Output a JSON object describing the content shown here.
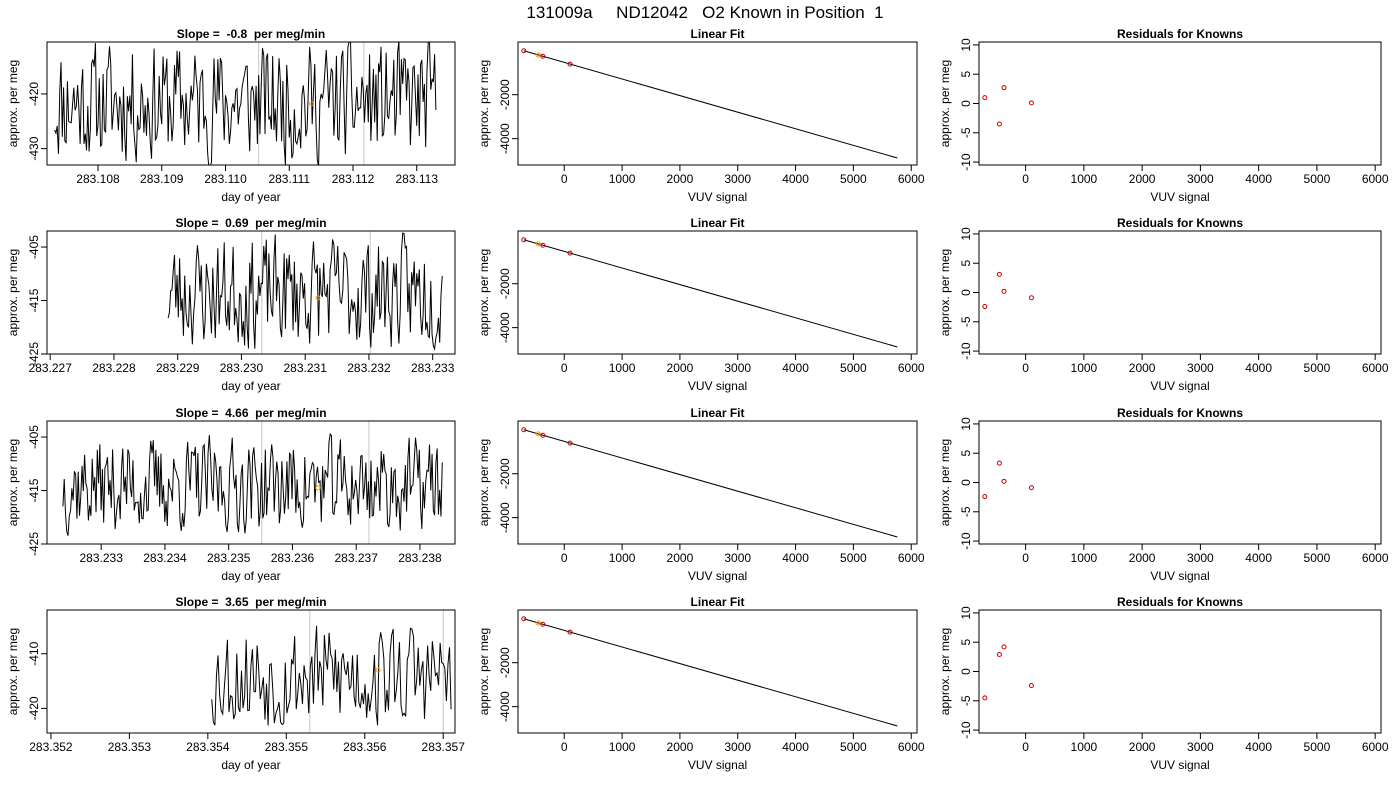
{
  "page_title": "131009a     ND12042   O2 Known in Position  1",
  "colors": {
    "line": "#000000",
    "known_marker": "#ff9900",
    "residual_marker": "#cc0000",
    "vline": "#c8c8c8"
  },
  "chart_data": [
    {
      "type": "line",
      "panel": "time",
      "title": "Slope =  -0.8  per meg/min",
      "xlabel": "day of year",
      "ylabel": "approx. per meg",
      "xlim": [
        283.1072,
        283.1136
      ],
      "ylim": [
        -433.0,
        -410.5
      ],
      "xticks": [
        283.108,
        283.109,
        283.11,
        283.111,
        283.112,
        283.113
      ],
      "xtick_labels": [
        "283.108",
        "283.109",
        "283.110",
        "283.111",
        "283.112",
        "283.113"
      ],
      "yticks": [
        -420,
        -430
      ],
      "ytick_labels": [
        "-420",
        "-430"
      ],
      "vlines": [
        283.11052,
        283.11217
      ],
      "x_start": 283.10732,
      "x_end": 283.1133,
      "seed": 11,
      "mean": -421.5,
      "amp": 10.5,
      "marker": {
        "x": 283.11135,
        "y": -421.8
      }
    },
    {
      "type": "scatter",
      "panel": "fit",
      "title": "Linear Fit",
      "xlabel": "VUV signal",
      "ylabel": "approx. per meg",
      "xlim": [
        -800,
        6100
      ],
      "ylim": [
        -5200,
        400
      ],
      "xticks": [
        0,
        1000,
        2000,
        3000,
        4000,
        5000,
        6000
      ],
      "xtick_labels": [
        "0",
        "1000",
        "2000",
        "3000",
        "4000",
        "5000",
        "6000"
      ],
      "yticks": [
        -2000,
        -4000
      ],
      "ytick_labels": [
        "-2000",
        "-4000"
      ],
      "fit_line": {
        "x": [
          -700,
          5760
        ],
        "y": [
          0,
          -4880
        ]
      },
      "points": [
        {
          "x": -700,
          "y": 0,
          "c": "residual"
        },
        {
          "x": -450,
          "y": -189,
          "c": "known"
        },
        {
          "x": -370,
          "y": -249,
          "c": "residual"
        },
        {
          "x": 100,
          "y": -607,
          "c": "residual"
        }
      ]
    },
    {
      "type": "scatter",
      "panel": "resid",
      "title": "Residuals for Knowns",
      "xlabel": "VUV signal",
      "ylabel": "approx. per meg",
      "xlim": [
        -800,
        6100
      ],
      "ylim": [
        -10.5,
        10.5
      ],
      "xticks": [
        0,
        1000,
        2000,
        3000,
        4000,
        5000,
        6000
      ],
      "xtick_labels": [
        "0",
        "1000",
        "2000",
        "3000",
        "4000",
        "5000",
        "6000"
      ],
      "yticks": [
        10,
        5,
        0,
        -5,
        -10
      ],
      "ytick_labels": [
        "10",
        "5",
        "0",
        "-5",
        "-10"
      ],
      "points": [
        {
          "x": -700,
          "y": 1.0
        },
        {
          "x": -450,
          "y": -3.5
        },
        {
          "x": -370,
          "y": 2.7
        },
        {
          "x": 100,
          "y": 0.1
        }
      ]
    },
    {
      "type": "line",
      "panel": "time",
      "title": "Slope =  0.69  per meg/min",
      "xlabel": "day of year",
      "ylabel": "approx. per meg",
      "xlim": [
        283.22695,
        283.23335
      ],
      "ylim": [
        -425.0,
        -402.0
      ],
      "xticks": [
        283.227,
        283.228,
        283.229,
        283.23,
        283.231,
        283.232,
        283.233
      ],
      "xtick_labels": [
        "283.227",
        "283.228",
        "283.229",
        "283.230",
        "283.231",
        "283.232",
        "283.233"
      ],
      "yticks": [
        -405,
        -415,
        -425
      ],
      "ytick_labels": [
        "-405",
        "-415",
        "-425"
      ],
      "vlines": [
        283.23032,
        283.23202
      ],
      "x_start": 283.22885,
      "x_end": 283.23315,
      "seed": 23,
      "mean": -413.5,
      "amp": 10.0,
      "marker": {
        "x": 283.2312,
        "y": -414.5
      }
    },
    {
      "type": "scatter",
      "panel": "fit",
      "title": "Linear Fit",
      "xlabel": "VUV signal",
      "ylabel": "approx. per meg",
      "xlim": [
        -800,
        6100
      ],
      "ylim": [
        -5200,
        400
      ],
      "xticks": [
        0,
        1000,
        2000,
        3000,
        4000,
        5000,
        6000
      ],
      "xtick_labels": [
        "0",
        "1000",
        "2000",
        "3000",
        "4000",
        "5000",
        "6000"
      ],
      "yticks": [
        -2000,
        -4000
      ],
      "ytick_labels": [
        "-2000",
        "-4000"
      ],
      "fit_line": {
        "x": [
          -700,
          5760
        ],
        "y": [
          0,
          -4880
        ]
      },
      "points": [
        {
          "x": -700,
          "y": 0,
          "c": "residual"
        },
        {
          "x": -450,
          "y": -189,
          "c": "known"
        },
        {
          "x": -370,
          "y": -249,
          "c": "residual"
        },
        {
          "x": 100,
          "y": -607,
          "c": "residual"
        }
      ]
    },
    {
      "type": "scatter",
      "panel": "resid",
      "title": "Residuals for Knowns",
      "xlabel": "VUV signal",
      "ylabel": "approx. per meg",
      "xlim": [
        -800,
        6100
      ],
      "ylim": [
        -10.5,
        10.5
      ],
      "xticks": [
        0,
        1000,
        2000,
        3000,
        4000,
        5000,
        6000
      ],
      "xtick_labels": [
        "0",
        "1000",
        "2000",
        "3000",
        "4000",
        "5000",
        "6000"
      ],
      "yticks": [
        10,
        5,
        0,
        -5,
        -10
      ],
      "ytick_labels": [
        "10",
        "5",
        "0",
        "-5",
        "-10"
      ],
      "points": [
        {
          "x": -700,
          "y": -2.4
        },
        {
          "x": -450,
          "y": 3.1
        },
        {
          "x": -370,
          "y": 0.2
        },
        {
          "x": 100,
          "y": -0.9
        }
      ]
    },
    {
      "type": "line",
      "panel": "time",
      "title": "Slope =  4.66  per meg/min",
      "xlabel": "day of year",
      "ylabel": "approx. per meg",
      "xlim": [
        283.23215,
        283.23855
      ],
      "ylim": [
        -425.0,
        -402.0
      ],
      "xticks": [
        283.233,
        283.234,
        283.235,
        283.236,
        283.237,
        283.238
      ],
      "xtick_labels": [
        "283.233",
        "283.234",
        "283.235",
        "283.236",
        "283.237",
        "283.238"
      ],
      "yticks": [
        -405,
        -415,
        -425
      ],
      "ytick_labels": [
        "-405",
        "-415",
        "-425"
      ],
      "vlines": [
        283.23552,
        283.2372
      ],
      "x_start": 283.2324,
      "x_end": 283.23835,
      "seed": 37,
      "mean": -414.0,
      "amp": 8.5,
      "marker": {
        "x": 283.2364,
        "y": -414.5
      }
    },
    {
      "type": "scatter",
      "panel": "fit",
      "title": "Linear Fit",
      "xlabel": "VUV signal",
      "ylabel": "approx. per meg",
      "xlim": [
        -800,
        6100
      ],
      "ylim": [
        -5200,
        400
      ],
      "xticks": [
        0,
        1000,
        2000,
        3000,
        4000,
        5000,
        6000
      ],
      "xtick_labels": [
        "0",
        "1000",
        "2000",
        "3000",
        "4000",
        "5000",
        "6000"
      ],
      "yticks": [
        -2000,
        -4000
      ],
      "ytick_labels": [
        "-2000",
        "-4000"
      ],
      "fit_line": {
        "x": [
          -700,
          5760
        ],
        "y": [
          0,
          -4880
        ]
      },
      "points": [
        {
          "x": -700,
          "y": 0,
          "c": "residual"
        },
        {
          "x": -450,
          "y": -189,
          "c": "known"
        },
        {
          "x": -370,
          "y": -249,
          "c": "residual"
        },
        {
          "x": 100,
          "y": -607,
          "c": "residual"
        }
      ]
    },
    {
      "type": "scatter",
      "panel": "resid",
      "title": "Residuals for Knowns",
      "xlabel": "VUV signal",
      "ylabel": "approx. per meg",
      "xlim": [
        -800,
        6100
      ],
      "ylim": [
        -10.5,
        10.5
      ],
      "xticks": [
        0,
        1000,
        2000,
        3000,
        4000,
        5000,
        6000
      ],
      "xtick_labels": [
        "0",
        "1000",
        "2000",
        "3000",
        "4000",
        "5000",
        "6000"
      ],
      "yticks": [
        10,
        5,
        0,
        -5,
        -10
      ],
      "ytick_labels": [
        "10",
        "5",
        "0",
        "-5",
        "-10"
      ],
      "points": [
        {
          "x": -700,
          "y": -2.4
        },
        {
          "x": -450,
          "y": 3.3
        },
        {
          "x": -370,
          "y": 0.2
        },
        {
          "x": 100,
          "y": -0.9
        }
      ]
    },
    {
      "type": "line",
      "panel": "time",
      "title": "Slope =  3.65  per meg/min",
      "xlabel": "day of year",
      "ylabel": "approx. per meg",
      "xlim": [
        283.35195,
        283.35715
      ],
      "ylim": [
        -424.5,
        -402.0
      ],
      "xticks": [
        283.352,
        283.353,
        283.354,
        283.355,
        283.356,
        283.357
      ],
      "xtick_labels": [
        "283.352",
        "283.353",
        "283.354",
        "283.355",
        "283.356",
        "283.357"
      ],
      "yticks": [
        -410,
        -420
      ],
      "ytick_labels": [
        "-410",
        "-420"
      ],
      "vlines": [
        283.3553,
        283.357
      ],
      "x_start": 283.35405,
      "x_end": 283.3571,
      "seed": 53,
      "mean": -414.0,
      "amp": 9.5,
      "marker": {
        "x": 283.35617,
        "y": -413.0
      }
    },
    {
      "type": "scatter",
      "panel": "fit",
      "title": "Linear Fit",
      "xlabel": "VUV signal",
      "ylabel": "approx. per meg",
      "xlim": [
        -800,
        6100
      ],
      "ylim": [
        -5200,
        400
      ],
      "xticks": [
        0,
        1000,
        2000,
        3000,
        4000,
        5000,
        6000
      ],
      "xtick_labels": [
        "0",
        "1000",
        "2000",
        "3000",
        "4000",
        "5000",
        "6000"
      ],
      "yticks": [
        -2000,
        -4000
      ],
      "ytick_labels": [
        "-2000",
        "-4000"
      ],
      "fit_line": {
        "x": [
          -700,
          5760
        ],
        "y": [
          0,
          -4880
        ]
      },
      "points": [
        {
          "x": -700,
          "y": 0,
          "c": "residual"
        },
        {
          "x": -450,
          "y": -189,
          "c": "known"
        },
        {
          "x": -370,
          "y": -249,
          "c": "residual"
        },
        {
          "x": 100,
          "y": -607,
          "c": "residual"
        }
      ]
    },
    {
      "type": "scatter",
      "panel": "resid",
      "title": "Residuals for Knowns",
      "xlabel": "VUV signal",
      "ylabel": "approx. per meg",
      "xlim": [
        -800,
        6100
      ],
      "ylim": [
        -10.5,
        10.5
      ],
      "xticks": [
        0,
        1000,
        2000,
        3000,
        4000,
        5000,
        6000
      ],
      "xtick_labels": [
        "0",
        "1000",
        "2000",
        "3000",
        "4000",
        "5000",
        "6000"
      ],
      "yticks": [
        10,
        5,
        0,
        -5,
        -10
      ],
      "ytick_labels": [
        "10",
        "5",
        "0",
        "-5",
        "-10"
      ],
      "points": [
        {
          "x": -700,
          "y": -4.5
        },
        {
          "x": -450,
          "y": 2.9
        },
        {
          "x": -370,
          "y": 4.2
        },
        {
          "x": 100,
          "y": -2.4
        }
      ]
    }
  ]
}
